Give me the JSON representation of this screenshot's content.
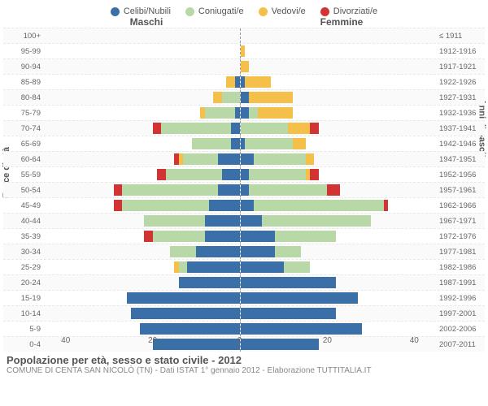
{
  "legend": [
    {
      "label": "Celibi/Nubili",
      "color": "#3a6fa7"
    },
    {
      "label": "Coniugati/e",
      "color": "#b9d8a8"
    },
    {
      "label": "Vedovi/e",
      "color": "#f5c04a"
    },
    {
      "label": "Divorziati/e",
      "color": "#d23434"
    }
  ],
  "side_labels": {
    "left": "Maschi",
    "right": "Femmine"
  },
  "y_title_left": "Fasce di età",
  "y_title_right": "Anni di nascita",
  "x_ticks": [
    40,
    20,
    0,
    20,
    40
  ],
  "x_max": 45,
  "rows": [
    {
      "age": "100+",
      "year": "≤ 1911",
      "m": [
        0,
        0,
        0,
        0
      ],
      "f": [
        0,
        0,
        0,
        0
      ]
    },
    {
      "age": "95-99",
      "year": "1912-1916",
      "m": [
        0,
        0,
        0,
        0
      ],
      "f": [
        0,
        0,
        1,
        0
      ]
    },
    {
      "age": "90-94",
      "year": "1917-1921",
      "m": [
        0,
        0,
        0,
        0
      ],
      "f": [
        0,
        0,
        2,
        0
      ]
    },
    {
      "age": "85-89",
      "year": "1922-1926",
      "m": [
        1,
        0,
        2,
        0
      ],
      "f": [
        1,
        0,
        6,
        0
      ]
    },
    {
      "age": "80-84",
      "year": "1927-1931",
      "m": [
        0,
        4,
        2,
        0
      ],
      "f": [
        2,
        0,
        10,
        0
      ]
    },
    {
      "age": "75-79",
      "year": "1932-1936",
      "m": [
        1,
        7,
        1,
        0
      ],
      "f": [
        2,
        2,
        8,
        0
      ]
    },
    {
      "age": "70-74",
      "year": "1937-1941",
      "m": [
        2,
        16,
        0,
        2
      ],
      "f": [
        0,
        11,
        5,
        2
      ]
    },
    {
      "age": "65-69",
      "year": "1942-1946",
      "m": [
        2,
        9,
        0,
        0
      ],
      "f": [
        1,
        11,
        3,
        0
      ]
    },
    {
      "age": "60-64",
      "year": "1947-1951",
      "m": [
        5,
        8,
        1,
        1
      ],
      "f": [
        3,
        12,
        2,
        0
      ]
    },
    {
      "age": "55-59",
      "year": "1952-1956",
      "m": [
        4,
        13,
        0,
        2
      ],
      "f": [
        2,
        13,
        1,
        2
      ]
    },
    {
      "age": "50-54",
      "year": "1957-1961",
      "m": [
        5,
        22,
        0,
        2
      ],
      "f": [
        2,
        18,
        0,
        3
      ]
    },
    {
      "age": "45-49",
      "year": "1962-1966",
      "m": [
        7,
        20,
        0,
        2
      ],
      "f": [
        3,
        30,
        0,
        1
      ]
    },
    {
      "age": "40-44",
      "year": "1967-1971",
      "m": [
        8,
        14,
        0,
        0
      ],
      "f": [
        5,
        25,
        0,
        0
      ]
    },
    {
      "age": "35-39",
      "year": "1972-1976",
      "m": [
        8,
        12,
        0,
        2
      ],
      "f": [
        8,
        14,
        0,
        0
      ]
    },
    {
      "age": "30-34",
      "year": "1977-1981",
      "m": [
        10,
        6,
        0,
        0
      ],
      "f": [
        8,
        6,
        0,
        0
      ]
    },
    {
      "age": "25-29",
      "year": "1982-1986",
      "m": [
        12,
        2,
        1,
        0
      ],
      "f": [
        10,
        6,
        0,
        0
      ]
    },
    {
      "age": "20-24",
      "year": "1987-1991",
      "m": [
        14,
        0,
        0,
        0
      ],
      "f": [
        22,
        0,
        0,
        0
      ]
    },
    {
      "age": "15-19",
      "year": "1992-1996",
      "m": [
        26,
        0,
        0,
        0
      ],
      "f": [
        27,
        0,
        0,
        0
      ]
    },
    {
      "age": "10-14",
      "year": "1997-2001",
      "m": [
        25,
        0,
        0,
        0
      ],
      "f": [
        22,
        0,
        0,
        0
      ]
    },
    {
      "age": "5-9",
      "year": "2002-2006",
      "m": [
        23,
        0,
        0,
        0
      ],
      "f": [
        28,
        0,
        0,
        0
      ]
    },
    {
      "age": "0-4",
      "year": "2007-2011",
      "m": [
        20,
        0,
        0,
        0
      ],
      "f": [
        18,
        0,
        0,
        0
      ]
    }
  ],
  "seg_order_left": [
    3,
    2,
    1,
    0
  ],
  "seg_order_right": [
    0,
    1,
    2,
    3
  ],
  "footer": {
    "title": "Popolazione per età, sesso e stato civile - 2012",
    "subtitle": "COMUNE DI CENTA SAN NICOLÒ (TN) - Dati ISTAT 1° gennaio 2012 - Elaborazione TUTTITALIA.IT"
  }
}
